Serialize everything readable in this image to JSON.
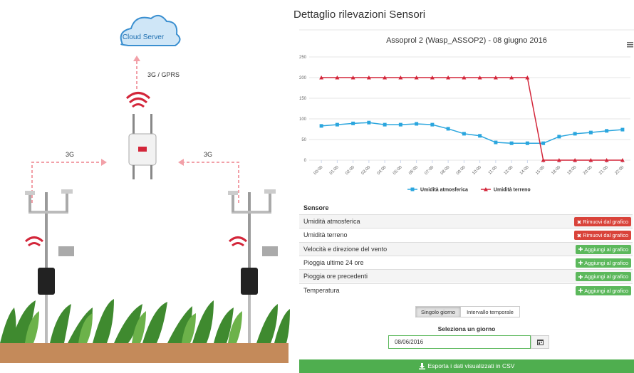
{
  "diagram": {
    "cloud": "Cloud Server",
    "uplink": "3G / GPRS",
    "links": [
      "3G",
      "3G"
    ]
  },
  "header": {
    "title": "Dettaglio rilevazioni Sensori"
  },
  "chart_data": {
    "type": "line",
    "title": "Assoprol 2 (Wasp_ASSOP2) - 08 giugno 2016",
    "categories": [
      "00:00",
      "01:00",
      "02:00",
      "03:00",
      "04:00",
      "05:00",
      "06:00",
      "07:00",
      "08:00",
      "09:00",
      "10:00",
      "11:00",
      "13:00",
      "14:00",
      "15:00",
      "18:00",
      "19:00",
      "20:00",
      "21:00",
      "22:00"
    ],
    "series": [
      {
        "name": "Umidità atmosferica",
        "color": "#2ba6de",
        "marker": "square",
        "values": [
          83,
          86,
          89,
          91,
          86,
          86,
          88,
          86,
          76,
          64,
          59,
          43,
          41,
          41,
          41,
          57,
          64,
          67,
          71,
          74
        ]
      },
      {
        "name": "Umidità terreno",
        "color": "#d3263a",
        "marker": "triangle",
        "values": [
          200,
          200,
          200,
          200,
          200,
          200,
          200,
          200,
          200,
          200,
          200,
          200,
          200,
          200,
          0,
          0,
          0,
          0,
          0,
          0
        ]
      }
    ],
    "ylim": [
      0,
      250
    ],
    "yticks": [
      0,
      50,
      100,
      150,
      200,
      250
    ],
    "grid": true,
    "legend": "bottom"
  },
  "table": {
    "header": "Sensore",
    "rows": [
      {
        "name": "Umidità atmosferica",
        "action": "Rimuovi dal grafico",
        "state": "remove"
      },
      {
        "name": "Umidità terreno",
        "action": "Rimuovi dal grafico",
        "state": "remove"
      },
      {
        "name": "Velocità e direzione del vento",
        "action": "Aggiungi al grafico",
        "state": "add"
      },
      {
        "name": "Pioggia ultime 24 ore",
        "action": "Aggiungi al grafico",
        "state": "add"
      },
      {
        "name": "Pioggia ore precedenti",
        "action": "Aggiungi al grafico",
        "state": "add"
      },
      {
        "name": "Temperatura",
        "action": "Aggiungi al grafico",
        "state": "add"
      }
    ]
  },
  "date_picker": {
    "modes": [
      "Singolo giorno",
      "Intervallo temporale"
    ],
    "label": "Seleziona un giorno",
    "value": "08/06/2016"
  },
  "export": "Esporta i dati visualizzati in CSV"
}
